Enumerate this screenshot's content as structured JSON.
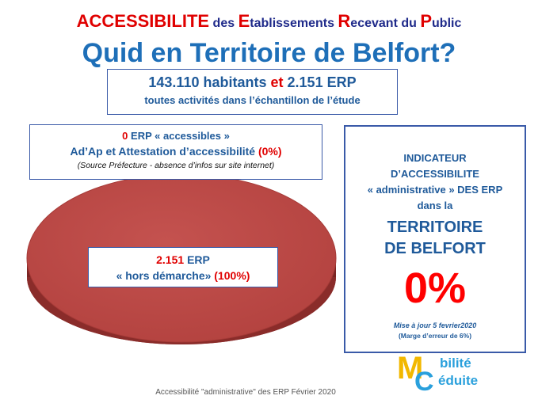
{
  "title": {
    "line1": [
      {
        "text": "ACCESSIBILITE",
        "color": "red",
        "size": "big"
      },
      {
        "text": " des ",
        "color": "navy",
        "size": "sm"
      },
      {
        "text": "E",
        "color": "red",
        "size": "big"
      },
      {
        "text": "tablissements ",
        "color": "navy",
        "size": "sm"
      },
      {
        "text": "R",
        "color": "red",
        "size": "big"
      },
      {
        "text": "ecevant du ",
        "color": "navy",
        "size": "sm"
      },
      {
        "text": "P",
        "color": "red",
        "size": "big"
      },
      {
        "text": "ublic",
        "color": "navy",
        "size": "sm"
      }
    ],
    "line2": "Quid en Territoire de Belfort?"
  },
  "population": {
    "habitants": "143.110 habitants",
    "et": "et",
    "erp_count": "2.151 ERP",
    "subtitle": "toutes activités dans l’échantillon de l’étude"
  },
  "accessibles": {
    "count": "0",
    "label": "ERP « accessibles »",
    "line2": "Ad’Ap et Attestation d’accessibilité",
    "percent": "(0%)",
    "source": "(Source Préfecture - absence d’infos sur site internet)"
  },
  "hors_demarche": {
    "count": "2.151",
    "label": "ERP",
    "line2": "« hors démarche»",
    "percent": "(100%)"
  },
  "indicateur": {
    "line1": "INDICATEUR",
    "line2": "D’ACCESSIBILITE",
    "line3": "« administrative » DES ERP",
    "line4": "dans la",
    "territory1": "TERRITOIRE",
    "territory2": "DE BELFORT",
    "value": "0%",
    "update": "Mise à  jour 5 fevrier2020",
    "margin": "(Marge d’erreur de 6%)"
  },
  "footer": "Accessibilité \"administrative\" des ERP Février 2020",
  "logo": {
    "m": "M",
    "c": "C",
    "word1": "bilité",
    "word2": "éduite"
  },
  "chart_data": {
    "type": "pie",
    "categories": [
      "ERP « accessibles »",
      "« hors démarche»"
    ],
    "values": [
      0,
      100
    ],
    "colors": [
      "#ffffff",
      "#c0504d"
    ]
  },
  "colors": {
    "red": "#e00000",
    "navy": "#1f2a8a",
    "blue": "#1e6fb8",
    "pie": "#c0504d"
  }
}
